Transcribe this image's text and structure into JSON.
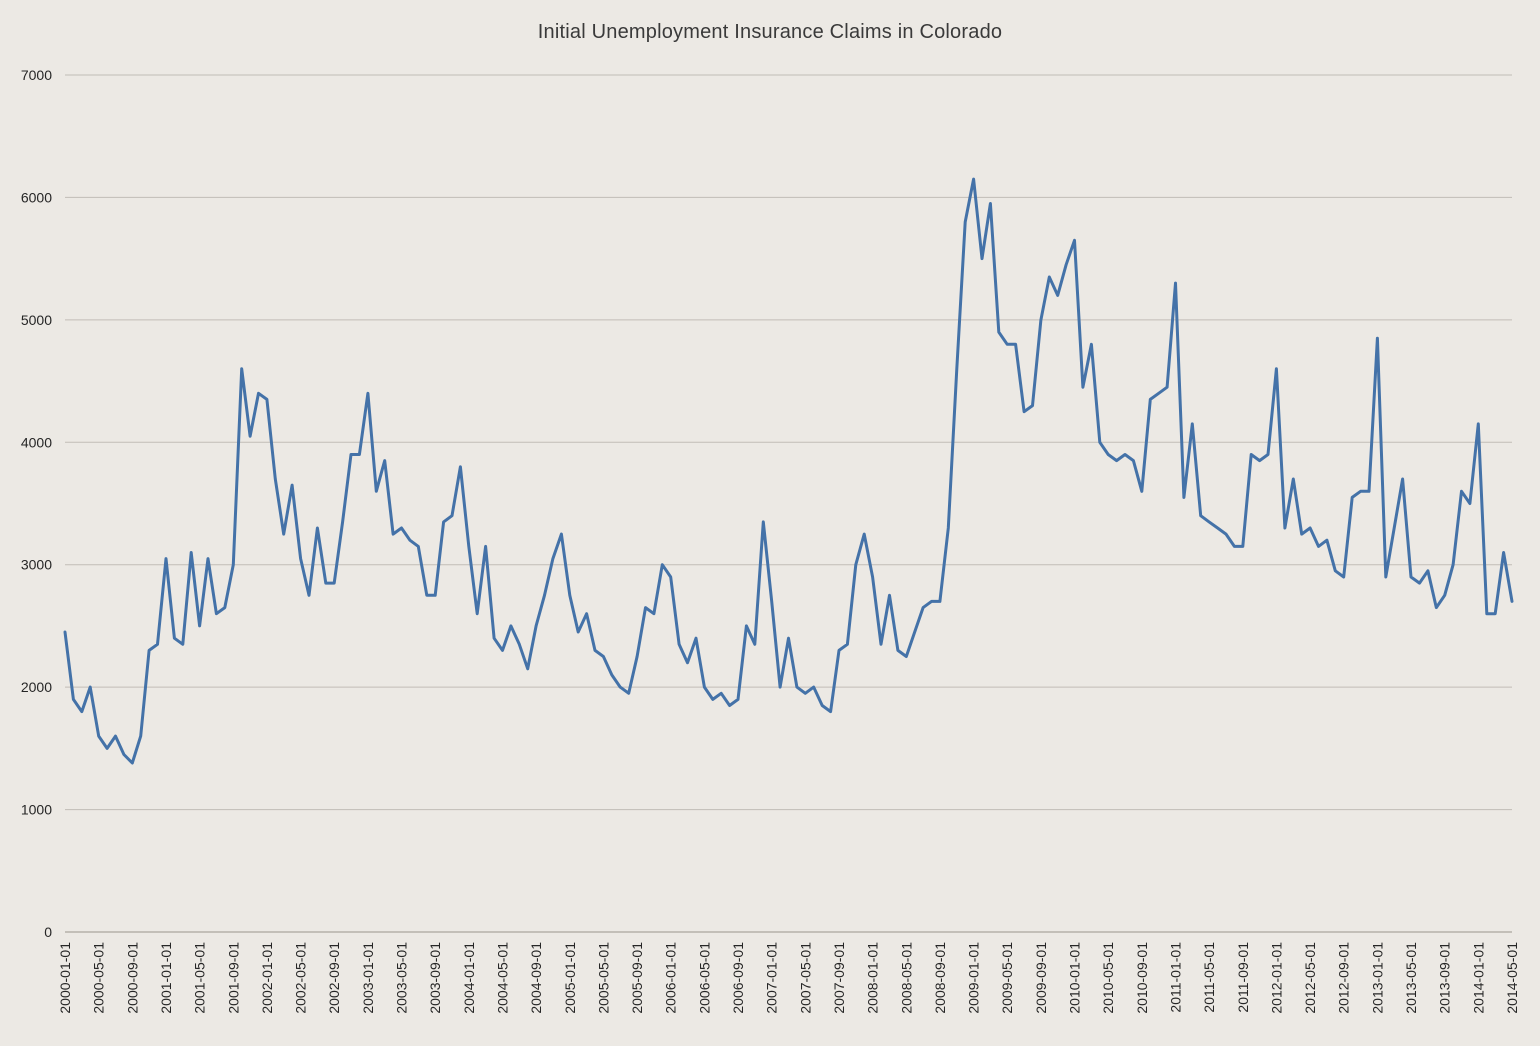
{
  "chart_data": {
    "type": "line",
    "title": "Initial Unemployment Insurance Claims in Colorado",
    "xlabel": "",
    "ylabel": "",
    "legend": "none",
    "grid": "horizontal",
    "ylim": [
      0,
      7000
    ],
    "y_ticks": [
      0,
      1000,
      2000,
      3000,
      4000,
      5000,
      6000,
      7000
    ],
    "tick_every": 4,
    "x_tick_labels": [
      "2000-01-01",
      "2000-05-01",
      "2000-09-01",
      "2001-01-01",
      "2001-05-01",
      "2001-09-01",
      "2002-01-01",
      "2002-05-01",
      "2002-09-01",
      "2003-01-01",
      "2003-05-01",
      "2003-09-01",
      "2004-01-01",
      "2004-05-01",
      "2004-09-01",
      "2005-01-01",
      "2005-05-01",
      "2005-09-01",
      "2006-01-01",
      "2006-05-01",
      "2006-09-01",
      "2007-01-01",
      "2007-05-01",
      "2007-09-01",
      "2008-01-01",
      "2008-05-01",
      "2008-09-01",
      "2009-01-01",
      "2009-05-01",
      "2009-09-01",
      "2010-01-01",
      "2010-05-01",
      "2010-09-01",
      "2011-01-01",
      "2011-05-01",
      "2011-09-01",
      "2012-01-01",
      "2012-05-01",
      "2012-09-01",
      "2013-01-01",
      "2013-05-01",
      "2013-09-01",
      "2014-01-01",
      "2014-05-01"
    ],
    "values": [
      2450,
      1900,
      1800,
      2000,
      1600,
      1500,
      1600,
      1450,
      1380,
      1600,
      2300,
      2350,
      3050,
      2400,
      2350,
      3100,
      2500,
      3050,
      2600,
      2650,
      3000,
      4600,
      4050,
      4400,
      4350,
      3700,
      3250,
      3650,
      3050,
      2750,
      3300,
      2850,
      2850,
      3350,
      3900,
      3900,
      4400,
      3600,
      3850,
      3250,
      3300,
      3200,
      3150,
      2750,
      2750,
      3350,
      3400,
      3800,
      3150,
      2600,
      3150,
      2400,
      2300,
      2500,
      2350,
      2150,
      2500,
      2750,
      3050,
      3250,
      2750,
      2450,
      2600,
      2300,
      2250,
      2100,
      2000,
      1950,
      2250,
      2650,
      2600,
      3000,
      2900,
      2350,
      2200,
      2400,
      2000,
      1900,
      1950,
      1850,
      1900,
      2500,
      2350,
      3350,
      2700,
      2000,
      2400,
      2000,
      1950,
      2000,
      1850,
      1800,
      2300,
      2350,
      3000,
      3250,
      2900,
      2350,
      2750,
      2300,
      2250,
      2450,
      2650,
      2700,
      2700,
      3300,
      4600,
      5800,
      6150,
      5500,
      5950,
      4900,
      4800,
      4800,
      4250,
      4300,
      5000,
      5350,
      5200,
      5450,
      5650,
      4450,
      4800,
      4000,
      3900,
      3850,
      3900,
      3850,
      3600,
      4350,
      4400,
      4450,
      5300,
      3550,
      4150,
      3400,
      3350,
      3300,
      3250,
      3150,
      3150,
      3900,
      3850,
      3900,
      4600,
      3300,
      3700,
      3250,
      3300,
      3150,
      3200,
      2950,
      2900,
      3550,
      3600,
      3600,
      4850,
      2900,
      3300,
      3700,
      2900,
      2850,
      2950,
      2650,
      2750,
      3000,
      3600,
      3500,
      4150,
      2600,
      2600,
      3100,
      2700
    ],
    "colors": {
      "line": "#4472a8",
      "background": "#ece9e4",
      "grid": "#c1bdb6",
      "axis": "#9a958c",
      "text": "#262626",
      "title": "#3a3a3a"
    }
  }
}
